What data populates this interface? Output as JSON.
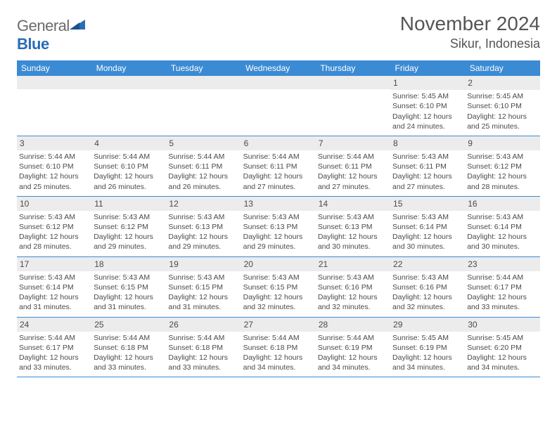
{
  "logo": {
    "word1": "General",
    "word2": "Blue"
  },
  "title": "November 2024",
  "location": "Sikur, Indonesia",
  "colors": {
    "header_bg": "#3b8bd4",
    "header_text": "#ffffff",
    "daynum_bg": "#ececec",
    "border": "#3b8bd4",
    "text": "#4a4a4a",
    "logo_gray": "#6b6b6b",
    "logo_blue": "#2a6db5"
  },
  "weekdays": [
    "Sunday",
    "Monday",
    "Tuesday",
    "Wednesday",
    "Thursday",
    "Friday",
    "Saturday"
  ],
  "weeks": [
    [
      null,
      null,
      null,
      null,
      null,
      {
        "n": "1",
        "sr": "5:45 AM",
        "ss": "6:10 PM",
        "dl": "12 hours and 24 minutes."
      },
      {
        "n": "2",
        "sr": "5:45 AM",
        "ss": "6:10 PM",
        "dl": "12 hours and 25 minutes."
      }
    ],
    [
      {
        "n": "3",
        "sr": "5:44 AM",
        "ss": "6:10 PM",
        "dl": "12 hours and 25 minutes."
      },
      {
        "n": "4",
        "sr": "5:44 AM",
        "ss": "6:10 PM",
        "dl": "12 hours and 26 minutes."
      },
      {
        "n": "5",
        "sr": "5:44 AM",
        "ss": "6:11 PM",
        "dl": "12 hours and 26 minutes."
      },
      {
        "n": "6",
        "sr": "5:44 AM",
        "ss": "6:11 PM",
        "dl": "12 hours and 27 minutes."
      },
      {
        "n": "7",
        "sr": "5:44 AM",
        "ss": "6:11 PM",
        "dl": "12 hours and 27 minutes."
      },
      {
        "n": "8",
        "sr": "5:43 AM",
        "ss": "6:11 PM",
        "dl": "12 hours and 27 minutes."
      },
      {
        "n": "9",
        "sr": "5:43 AM",
        "ss": "6:12 PM",
        "dl": "12 hours and 28 minutes."
      }
    ],
    [
      {
        "n": "10",
        "sr": "5:43 AM",
        "ss": "6:12 PM",
        "dl": "12 hours and 28 minutes."
      },
      {
        "n": "11",
        "sr": "5:43 AM",
        "ss": "6:12 PM",
        "dl": "12 hours and 29 minutes."
      },
      {
        "n": "12",
        "sr": "5:43 AM",
        "ss": "6:13 PM",
        "dl": "12 hours and 29 minutes."
      },
      {
        "n": "13",
        "sr": "5:43 AM",
        "ss": "6:13 PM",
        "dl": "12 hours and 29 minutes."
      },
      {
        "n": "14",
        "sr": "5:43 AM",
        "ss": "6:13 PM",
        "dl": "12 hours and 30 minutes."
      },
      {
        "n": "15",
        "sr": "5:43 AM",
        "ss": "6:14 PM",
        "dl": "12 hours and 30 minutes."
      },
      {
        "n": "16",
        "sr": "5:43 AM",
        "ss": "6:14 PM",
        "dl": "12 hours and 30 minutes."
      }
    ],
    [
      {
        "n": "17",
        "sr": "5:43 AM",
        "ss": "6:14 PM",
        "dl": "12 hours and 31 minutes."
      },
      {
        "n": "18",
        "sr": "5:43 AM",
        "ss": "6:15 PM",
        "dl": "12 hours and 31 minutes."
      },
      {
        "n": "19",
        "sr": "5:43 AM",
        "ss": "6:15 PM",
        "dl": "12 hours and 31 minutes."
      },
      {
        "n": "20",
        "sr": "5:43 AM",
        "ss": "6:15 PM",
        "dl": "12 hours and 32 minutes."
      },
      {
        "n": "21",
        "sr": "5:43 AM",
        "ss": "6:16 PM",
        "dl": "12 hours and 32 minutes."
      },
      {
        "n": "22",
        "sr": "5:43 AM",
        "ss": "6:16 PM",
        "dl": "12 hours and 32 minutes."
      },
      {
        "n": "23",
        "sr": "5:44 AM",
        "ss": "6:17 PM",
        "dl": "12 hours and 33 minutes."
      }
    ],
    [
      {
        "n": "24",
        "sr": "5:44 AM",
        "ss": "6:17 PM",
        "dl": "12 hours and 33 minutes."
      },
      {
        "n": "25",
        "sr": "5:44 AM",
        "ss": "6:18 PM",
        "dl": "12 hours and 33 minutes."
      },
      {
        "n": "26",
        "sr": "5:44 AM",
        "ss": "6:18 PM",
        "dl": "12 hours and 33 minutes."
      },
      {
        "n": "27",
        "sr": "5:44 AM",
        "ss": "6:18 PM",
        "dl": "12 hours and 34 minutes."
      },
      {
        "n": "28",
        "sr": "5:44 AM",
        "ss": "6:19 PM",
        "dl": "12 hours and 34 minutes."
      },
      {
        "n": "29",
        "sr": "5:45 AM",
        "ss": "6:19 PM",
        "dl": "12 hours and 34 minutes."
      },
      {
        "n": "30",
        "sr": "5:45 AM",
        "ss": "6:20 PM",
        "dl": "12 hours and 34 minutes."
      }
    ]
  ],
  "labels": {
    "sunrise": "Sunrise: ",
    "sunset": "Sunset: ",
    "daylight": "Daylight: "
  }
}
